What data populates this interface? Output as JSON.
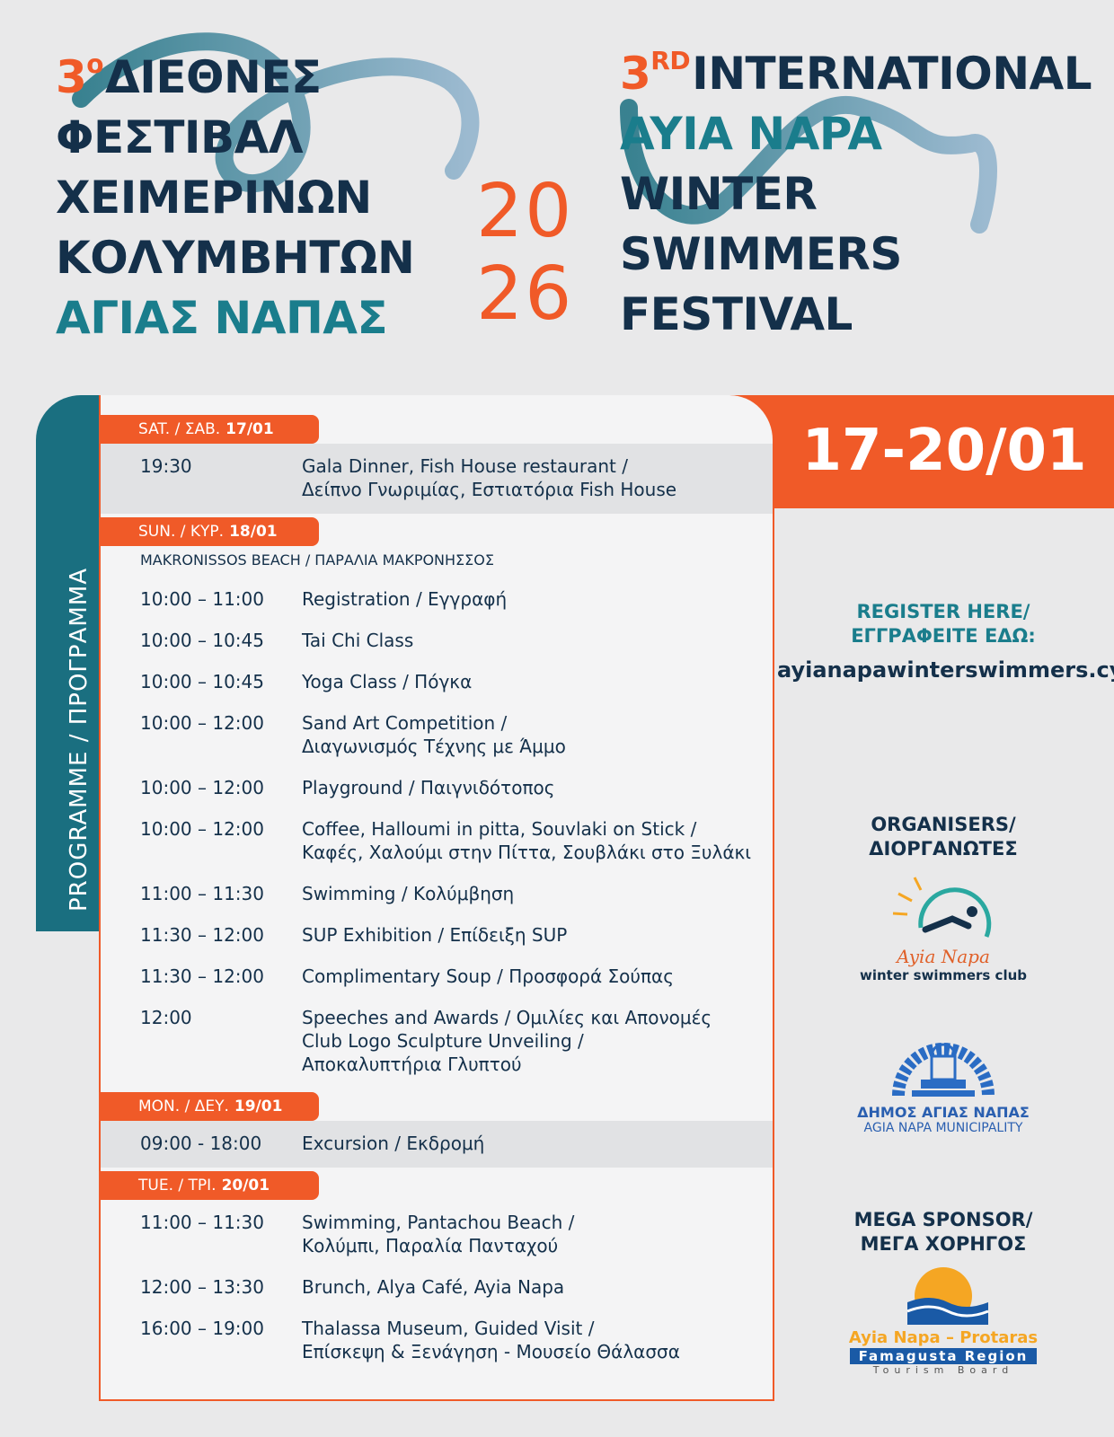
{
  "header": {
    "greek": {
      "number": "3",
      "suffix": "ο",
      "lines": [
        "ΔΙΕΘΝΕΣ",
        "ΦΕΣΤΙΒΑΛ",
        "ΧΕΙΜΕΡΙΝΩΝ",
        "ΚΟΛΥΜΒΗΤΩΝ",
        "ΑΓΙΑΣ ΝΑΠΑΣ"
      ]
    },
    "year": [
      "20",
      "26"
    ],
    "english": {
      "number": "3",
      "suffix": "RD",
      "lines": [
        "INTERNATIONAL",
        "AYIA NAPA",
        "WINTER",
        "SWIMMERS",
        "FESTIVAL"
      ]
    }
  },
  "programme": {
    "label": "PROGRAMME / ΠΡΟΓΡΑΜΜΑ",
    "dates": "17-20/01",
    "days": [
      {
        "name": "SAT. / ΣΑΒ.",
        "date": "17/01",
        "events": [
          {
            "time": "19:30",
            "lines": [
              "Gala Dinner, Fish House restaurant /",
              "Δείπνο Γνωριμίας, Εστιατόρια Fish House"
            ]
          }
        ]
      },
      {
        "name": "SUN. / ΚΥΡ.",
        "date": "18/01",
        "location": "MAKRONISSOS BEACH / ΠΑΡΑΛΙΑ ΜΑΚΡΟΝΗΣΣΟΣ",
        "events": [
          {
            "time": "10:00 – 11:00",
            "lines": [
              "Registration / Εγγραφή"
            ]
          },
          {
            "time": "10:00 – 10:45",
            "lines": [
              "Tai Chi Class"
            ]
          },
          {
            "time": "10:00 – 10:45",
            "lines": [
              "Yoga Class / Πόγκα"
            ]
          },
          {
            "time": "10:00 – 12:00",
            "lines": [
              "Sand Art Competition /",
              "Διαγωνισμός Τέχνης με Άμμο"
            ]
          },
          {
            "time": "10:00 – 12:00",
            "lines": [
              "Playground / Παιγνιδότοπος"
            ]
          },
          {
            "time": "10:00 – 12:00",
            "lines": [
              "Coffee, Halloumi in pitta, Souvlaki on Stick /",
              "Καφές, Χαλούμι στην Πίττα, Σουβλάκι στο Ξυλάκι"
            ]
          },
          {
            "time": "11:00 – 11:30",
            "lines": [
              "Swimming / Κολύμβηση"
            ]
          },
          {
            "time": "11:30 – 12:00",
            "lines": [
              "SUP Exhibition / Επίδειξη SUP"
            ]
          },
          {
            "time": "11:30 – 12:00",
            "lines": [
              "Complimentary Soup / Προσφορά Σούπας"
            ]
          },
          {
            "time": "12:00",
            "lines": [
              "Speeches and Awards / Ομιλίες και Απονομές",
              "Club Logo Sculpture Unveiling /",
              "Αποκαλυπτήρια Γλυπτού"
            ]
          }
        ]
      },
      {
        "name": "MON. / ΔΕΥ.",
        "date": "19/01",
        "events": [
          {
            "time": "09:00 - 18:00",
            "lines": [
              "Excursion / Εκδρομή"
            ]
          }
        ]
      },
      {
        "name": "TUE. / ΤΡΙ.",
        "date": "20/01",
        "events": [
          {
            "time": "11:00 – 11:30",
            "lines": [
              "Swimming, Pantachou Beach /",
              "Κολύμπι, Παραλία Πανταχού"
            ]
          },
          {
            "time": "12:00 – 13:30",
            "lines": [
              "Brunch, Alya Café, Ayia Napa"
            ]
          },
          {
            "time": "16:00 – 19:00",
            "lines": [
              "Thalassa Museum, Guided Visit /",
              "Επίσκεψη & Ξενάγηση - Μουσείο Θάλασσα"
            ]
          }
        ]
      }
    ]
  },
  "sidebar": {
    "register": {
      "lines": [
        "REGISTER HERE/",
        "ΕΓΓΡΑΦΕΙΤΕ ΕΔΩ:"
      ],
      "url": "ayianapawinterswimmers.cy"
    },
    "organisers": {
      "lines": [
        "ORGANISERS/",
        "ΔΙΟΡΓΑΝΩΤΕΣ"
      ],
      "club_name": "Ayia Napa",
      "club_sub": "winter swimmers club"
    },
    "municipality": {
      "greek": "ΔΗΜΟΣ ΑΓΙΑΣ ΝΑΠΑΣ",
      "english": "AGIA NAPA MUNICIPALITY"
    },
    "sponsor": {
      "lines": [
        "MEGA SPONSOR/",
        "ΜΕΓΑ ΧΟΡΗΓΟΣ"
      ],
      "name": "Ayia Napa – Protaras",
      "region": "Famagusta Region",
      "board": "Tourism Board"
    }
  }
}
